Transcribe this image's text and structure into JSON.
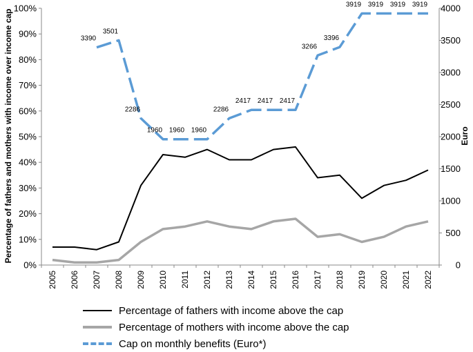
{
  "chart_data": {
    "type": "line",
    "categories": [
      "2005",
      "2006",
      "2007",
      "2008",
      "2009",
      "2010",
      "2011",
      "2012",
      "2013",
      "2014",
      "2015",
      "2016",
      "2017",
      "2018",
      "2019",
      "2020",
      "2021",
      "2022"
    ],
    "ylabel": "Percentage of fathers and mothers with income over income cap",
    "y2label": "Euro",
    "ylim": [
      0,
      100
    ],
    "yticks": [
      "0%",
      "10%",
      "20%",
      "30%",
      "40%",
      "50%",
      "60%",
      "70%",
      "80%",
      "90%",
      "100%"
    ],
    "y2lim": [
      0,
      4000
    ],
    "y2ticks": [
      "0",
      "500",
      "1000",
      "1500",
      "2000",
      "2500",
      "3000",
      "3500",
      "4000"
    ],
    "grid": false,
    "legend_position": "bottom",
    "series": [
      {
        "name": "Percentage of fathers with income above the cap",
        "axis": "left",
        "color": "#000000",
        "style": "solid",
        "values": [
          7,
          7,
          6,
          9,
          31,
          43,
          42,
          45,
          41,
          41,
          45,
          46,
          34,
          35,
          26,
          31,
          33,
          37
        ]
      },
      {
        "name": "Percentage of mothers with income above the cap",
        "axis": "left",
        "color": "#a6a6a6",
        "style": "solid",
        "values": [
          2,
          1,
          1,
          2,
          9,
          14,
          15,
          17,
          15,
          14,
          17,
          18,
          11,
          12,
          9,
          11,
          15,
          17
        ]
      },
      {
        "name": "Cap on monthly benefits (Euro*)",
        "axis": "right",
        "color": "#5b9bd5",
        "style": "dashed",
        "values": [
          null,
          null,
          3390,
          3501,
          2286,
          1960,
          1960,
          1960,
          2286,
          2417,
          2417,
          2417,
          3266,
          3396,
          3919,
          3919,
          3919,
          3919
        ],
        "labels": [
          "",
          "",
          "3390",
          "3501",
          "2286",
          "1960",
          "1960",
          "1960",
          "2286",
          "2417",
          "2417",
          "2417",
          "3266",
          "3396",
          "3919",
          "3919",
          "3919",
          "3919"
        ]
      }
    ]
  }
}
